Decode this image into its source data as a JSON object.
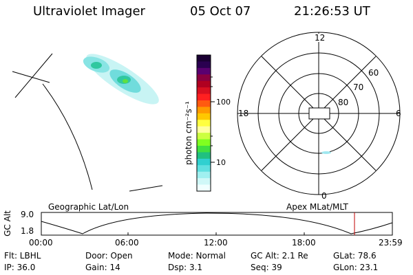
{
  "header": {
    "title": "Ultraviolet Imager",
    "date": "05 Oct 07",
    "time": "21:26:53 UT"
  },
  "colorbar": {
    "unit_label": "photon cm⁻²s⁻¹",
    "ticks": [
      "100",
      "10"
    ],
    "colors": [
      "#1a0033",
      "#2a0050",
      "#5a0070",
      "#8a0040",
      "#b00020",
      "#d81020",
      "#ff2020",
      "#ff5a10",
      "#ff9a00",
      "#ffc800",
      "#ffff40",
      "#ffffa0",
      "#ccff40",
      "#80ff20",
      "#40e040",
      "#20c080",
      "#30d0d0",
      "#60e0e0",
      "#a0f0f0",
      "#d0f8f8",
      "#f0ffff"
    ]
  },
  "polar": {
    "labels": {
      "top": "12",
      "left": "18",
      "right": "6",
      "bottom": "0"
    },
    "rings": [
      "60",
      "70",
      "80"
    ]
  },
  "timeline": {
    "left_title": "Geographic Lat/Lon",
    "right_title": "Apex MLat/MLT",
    "y_axis_label": "GC Alt",
    "y_ticks": [
      "9.0",
      "1.8"
    ],
    "x_ticks": [
      "00:00",
      "06:00",
      "12:00",
      "18:00",
      "23:59"
    ],
    "marker_color": "#c00000"
  },
  "info": {
    "flt": "Flt: LBHL",
    "ip": "IP: 36.0",
    "door": "Door: Open",
    "gain": "Gain: 14",
    "mode": "Mode: Normal",
    "dsp": "Dsp:    3.1",
    "gc_alt": "GC Alt: 2.1 Re",
    "seq": "Seq: 39",
    "glat": "GLat:  78.6",
    "glon": "GLon:  23.1"
  }
}
